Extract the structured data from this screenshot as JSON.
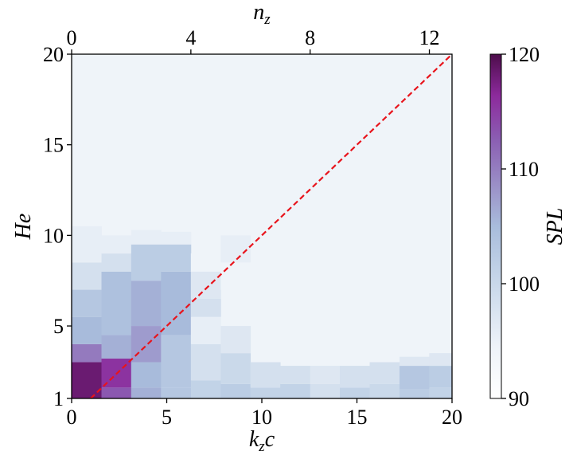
{
  "chart_data": {
    "type": "heatmap",
    "xlabel": "k_z c",
    "xlabel_parts": {
      "base": "k",
      "sub": "z",
      "tail": "c"
    },
    "ylabel": "He",
    "top_xlabel": "n_z",
    "top_xlabel_parts": {
      "base": "n",
      "sub": "z"
    },
    "colorbar_label": "SPL",
    "xlim": [
      0,
      20
    ],
    "ylim": [
      1,
      20
    ],
    "top_xlim": [
      0,
      12.76
    ],
    "clim": [
      90,
      120
    ],
    "x_ticks": [
      0,
      5,
      10,
      15,
      20
    ],
    "y_ticks": [
      1,
      5,
      10,
      15,
      20
    ],
    "top_x_ticks": [
      0,
      4,
      8,
      12
    ],
    "colorbar_ticks": [
      90,
      100,
      110,
      120
    ],
    "colormap": [
      "#ffffff",
      "#eef3f9",
      "#c5d5e8",
      "#a8bcdc",
      "#9a8fc7",
      "#8b5fb3",
      "#8c2a9c",
      "#4d0d4b"
    ],
    "columns": [
      {
        "x0": 0.0,
        "x1": 1.57,
        "bands": [
          [
            1,
            3,
            118
          ],
          [
            3,
            4,
            109
          ],
          [
            4,
            5.5,
            103
          ],
          [
            5.5,
            7,
            101
          ],
          [
            7,
            8.5,
            97
          ],
          [
            8.5,
            10.5,
            95
          ]
        ]
      },
      {
        "x0": 1.57,
        "x1": 3.13,
        "bands": [
          [
            1,
            1.6,
            112
          ],
          [
            1.6,
            3.2,
            115
          ],
          [
            3.2,
            4.5,
            104
          ],
          [
            4.5,
            8,
            102
          ],
          [
            8,
            9,
            97
          ],
          [
            9,
            10,
            95
          ]
        ]
      },
      {
        "x0": 3.13,
        "x1": 4.7,
        "bands": [
          [
            1,
            1.6,
            104
          ],
          [
            1.6,
            3,
            103
          ],
          [
            3,
            5,
            106
          ],
          [
            5,
            7.5,
            104
          ],
          [
            7.5,
            9.5,
            100
          ],
          [
            9.5,
            10.3,
            95
          ]
        ]
      },
      {
        "x0": 4.7,
        "x1": 6.27,
        "bands": [
          [
            1,
            1.6,
            101
          ],
          [
            1.6,
            4.5,
            101
          ],
          [
            4.5,
            8,
            103
          ],
          [
            8,
            9.5,
            100
          ],
          [
            9.5,
            10.2,
            95
          ]
        ]
      },
      {
        "x0": 6.27,
        "x1": 7.84,
        "bands": [
          [
            1,
            2,
            99
          ],
          [
            2,
            4,
            97
          ],
          [
            4,
            5.5,
            95
          ],
          [
            5.5,
            6.5,
            97
          ],
          [
            6.5,
            8,
            96
          ],
          [
            8,
            9,
            94
          ]
        ]
      },
      {
        "x0": 7.84,
        "x1": 9.4,
        "bands": [
          [
            1,
            1.8,
            100
          ],
          [
            1.8,
            3.5,
            98
          ],
          [
            3.5,
            5,
            96
          ],
          [
            7,
            8.5,
            94
          ],
          [
            8.5,
            10,
            95
          ]
        ]
      },
      {
        "x0": 9.4,
        "x1": 10.97,
        "bands": [
          [
            1,
            1.6,
            99
          ],
          [
            1.6,
            3,
            97
          ]
        ]
      },
      {
        "x0": 10.97,
        "x1": 12.54,
        "bands": [
          [
            1,
            1.8,
            99
          ],
          [
            1.8,
            2.8,
            97
          ]
        ]
      },
      {
        "x0": 12.54,
        "x1": 14.1,
        "bands": [
          [
            1,
            1.8,
            97
          ],
          [
            1.8,
            2.8,
            96
          ]
        ]
      },
      {
        "x0": 14.1,
        "x1": 15.67,
        "bands": [
          [
            1,
            1.6,
            99
          ],
          [
            1.6,
            2.8,
            97
          ]
        ]
      },
      {
        "x0": 15.67,
        "x1": 17.24,
        "bands": [
          [
            1,
            1.8,
            98
          ],
          [
            1.8,
            3,
            97
          ]
        ]
      },
      {
        "x0": 17.24,
        "x1": 18.8,
        "bands": [
          [
            1,
            1.5,
            100
          ],
          [
            1.5,
            2.8,
            101
          ],
          [
            2.8,
            3.3,
            96
          ]
        ]
      },
      {
        "x0": 18.8,
        "x1": 20.0,
        "bands": [
          [
            1,
            1.6,
            99
          ],
          [
            1.6,
            2.8,
            100
          ],
          [
            2.8,
            3.5,
            96
          ]
        ]
      }
    ],
    "background_value": 94,
    "reference_line": {
      "x": [
        1,
        20
      ],
      "y": [
        1,
        20
      ],
      "color": "#e8141c",
      "style": "dashed"
    }
  }
}
